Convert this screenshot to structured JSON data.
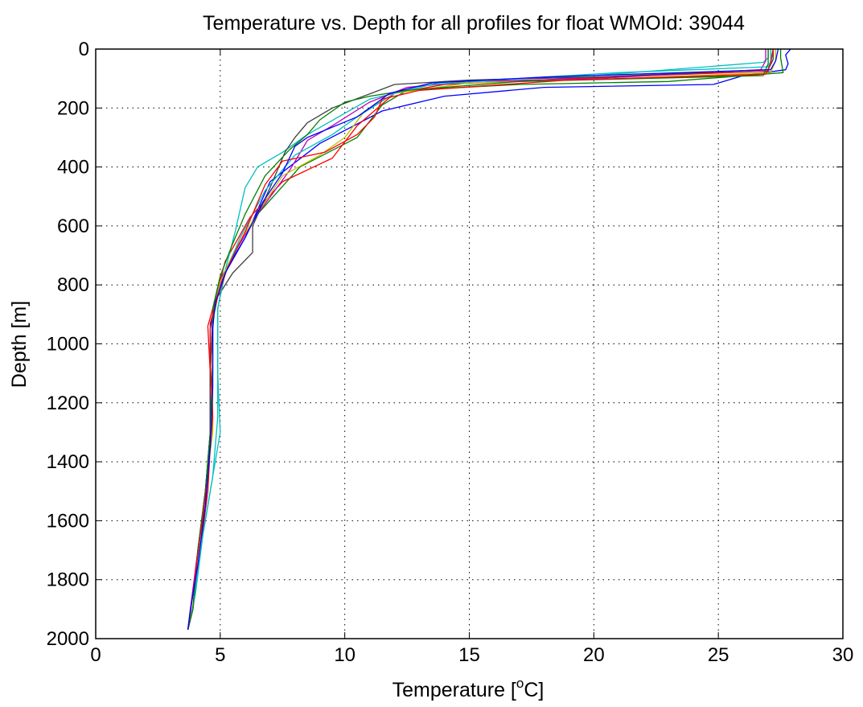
{
  "chart_data": {
    "type": "line",
    "title": "Temperature vs. Depth for all profiles for float WMOId: 39044",
    "xlabel_main": "Temperature [",
    "xlabel_sup": "o",
    "xlabel_unit": "C]",
    "ylabel": "Depth [m]",
    "xlim": [
      0,
      30
    ],
    "ylim": [
      0,
      2000
    ],
    "y_reversed": true,
    "grid": true,
    "grid_style": "dotted",
    "legend": "none",
    "x_ticks": [
      0,
      5,
      10,
      15,
      20,
      25,
      30
    ],
    "y_ticks": [
      0,
      200,
      400,
      600,
      800,
      1000,
      1200,
      1400,
      1600,
      1800,
      2000
    ],
    "series": [
      {
        "color": "#0000ff",
        "points": [
          [
            27.9,
            0
          ],
          [
            27.7,
            20
          ],
          [
            27.8,
            50
          ],
          [
            27.7,
            70
          ],
          [
            26.0,
            90
          ],
          [
            24.8,
            120
          ],
          [
            18.0,
            130
          ],
          [
            14.0,
            160
          ],
          [
            11.5,
            210
          ],
          [
            9.0,
            320
          ],
          [
            7.0,
            450
          ],
          [
            6.0,
            640
          ],
          [
            5.0,
            780
          ],
          [
            4.8,
            850
          ],
          [
            4.6,
            950
          ],
          [
            4.6,
            1200
          ],
          [
            4.6,
            1350
          ],
          [
            4.4,
            1500
          ],
          [
            4.1,
            1700
          ],
          [
            3.9,
            1850
          ],
          [
            3.7,
            1970
          ]
        ]
      },
      {
        "color": "#008000",
        "points": [
          [
            27.5,
            0
          ],
          [
            27.5,
            30
          ],
          [
            27.6,
            80
          ],
          [
            23.0,
            110
          ],
          [
            17.0,
            120
          ],
          [
            12.5,
            140
          ],
          [
            11.5,
            190
          ],
          [
            10.5,
            300
          ],
          [
            8.2,
            400
          ],
          [
            6.5,
            560
          ],
          [
            5.5,
            700
          ],
          [
            5.0,
            790
          ],
          [
            4.7,
            900
          ],
          [
            4.7,
            1100
          ],
          [
            4.6,
            1300
          ],
          [
            4.4,
            1500
          ],
          [
            4.2,
            1700
          ],
          [
            3.9,
            1900
          ],
          [
            3.7,
            1970
          ]
        ]
      },
      {
        "color": "#ff0000",
        "points": [
          [
            27.2,
            0
          ],
          [
            27.1,
            40
          ],
          [
            27.0,
            75
          ],
          [
            19.0,
            100
          ],
          [
            14.0,
            120
          ],
          [
            12.0,
            150
          ],
          [
            10.5,
            260
          ],
          [
            9.5,
            370
          ],
          [
            7.5,
            450
          ],
          [
            6.2,
            570
          ],
          [
            5.2,
            720
          ],
          [
            4.8,
            850
          ],
          [
            4.5,
            940
          ],
          [
            4.6,
            1100
          ],
          [
            4.6,
            1350
          ],
          [
            4.5,
            1500
          ],
          [
            4.2,
            1700
          ],
          [
            3.9,
            1900
          ],
          [
            3.7,
            1970
          ]
        ]
      },
      {
        "color": "#00bfbf",
        "points": [
          [
            27.0,
            0
          ],
          [
            27.0,
            30
          ],
          [
            26.8,
            45
          ],
          [
            20.0,
            90
          ],
          [
            14.0,
            110
          ],
          [
            11.0,
            170
          ],
          [
            8.5,
            290
          ],
          [
            7.5,
            350
          ],
          [
            6.5,
            400
          ],
          [
            6.0,
            470
          ],
          [
            5.6,
            620
          ],
          [
            5.2,
            750
          ],
          [
            4.9,
            880
          ],
          [
            4.9,
            1100
          ],
          [
            5.0,
            1300
          ],
          [
            4.6,
            1500
          ],
          [
            4.2,
            1700
          ],
          [
            3.9,
            1900
          ],
          [
            3.7,
            1970
          ]
        ]
      },
      {
        "color": "#bf00bf",
        "points": [
          [
            26.9,
            0
          ],
          [
            26.9,
            40
          ],
          [
            26.7,
            70
          ],
          [
            20.0,
            100
          ],
          [
            15.0,
            110
          ],
          [
            12.5,
            130
          ],
          [
            11.0,
            180
          ],
          [
            9.5,
            260
          ],
          [
            8.5,
            310
          ],
          [
            7.8,
            410
          ],
          [
            6.5,
            560
          ],
          [
            5.5,
            700
          ],
          [
            5.0,
            800
          ],
          [
            4.7,
            900
          ],
          [
            4.6,
            1100
          ],
          [
            4.6,
            1300
          ],
          [
            4.4,
            1500
          ],
          [
            4.1,
            1700
          ],
          [
            3.8,
            1900
          ],
          [
            3.7,
            1970
          ]
        ]
      },
      {
        "color": "#bfbf00",
        "points": [
          [
            27.3,
            0
          ],
          [
            27.3,
            40
          ],
          [
            27.1,
            80
          ],
          [
            21.0,
            100
          ],
          [
            15.0,
            115
          ],
          [
            12.0,
            150
          ],
          [
            10.8,
            210
          ],
          [
            10.0,
            300
          ],
          [
            9.0,
            360
          ],
          [
            7.5,
            430
          ],
          [
            6.4,
            570
          ],
          [
            5.6,
            680
          ],
          [
            5.0,
            790
          ],
          [
            4.7,
            900
          ],
          [
            4.7,
            1100
          ],
          [
            4.7,
            1300
          ],
          [
            4.4,
            1500
          ],
          [
            4.1,
            1700
          ],
          [
            3.9,
            1900
          ],
          [
            3.7,
            1970
          ]
        ]
      },
      {
        "color": "#404040",
        "points": [
          [
            27.2,
            0
          ],
          [
            27.2,
            35
          ],
          [
            27.0,
            70
          ],
          [
            20.0,
            95
          ],
          [
            15.0,
            105
          ],
          [
            12.0,
            120
          ],
          [
            9.5,
            200
          ],
          [
            8.5,
            250
          ],
          [
            8.0,
            300
          ],
          [
            7.6,
            350
          ],
          [
            7.0,
            470
          ],
          [
            6.3,
            600
          ],
          [
            6.3,
            690
          ],
          [
            5.5,
            760
          ],
          [
            4.9,
            840
          ],
          [
            4.7,
            920
          ],
          [
            4.6,
            1100
          ],
          [
            4.6,
            1300
          ],
          [
            4.4,
            1500
          ],
          [
            4.1,
            1700
          ],
          [
            3.9,
            1900
          ],
          [
            3.7,
            1970
          ]
        ]
      },
      {
        "color": "#00bfbf",
        "points": [
          [
            27.1,
            0
          ],
          [
            27.1,
            40
          ],
          [
            27.0,
            60
          ],
          [
            21.0,
            80
          ],
          [
            17.0,
            100
          ],
          [
            13.5,
            120
          ],
          [
            12.0,
            150
          ],
          [
            10.5,
            230
          ],
          [
            9.5,
            290
          ],
          [
            8.0,
            360
          ],
          [
            6.8,
            480
          ],
          [
            5.8,
            640
          ],
          [
            5.2,
            760
          ],
          [
            4.9,
            880
          ],
          [
            4.9,
            1050
          ],
          [
            4.9,
            1250
          ],
          [
            4.7,
            1450
          ],
          [
            4.3,
            1650
          ],
          [
            4.0,
            1850
          ],
          [
            3.7,
            1970
          ]
        ]
      },
      {
        "color": "#008000",
        "points": [
          [
            27.0,
            0
          ],
          [
            27.0,
            50
          ],
          [
            26.8,
            90
          ],
          [
            17.0,
            110
          ],
          [
            12.5,
            140
          ],
          [
            11.0,
            160
          ],
          [
            10.0,
            180
          ],
          [
            9.0,
            240
          ],
          [
            8.5,
            290
          ],
          [
            7.8,
            340
          ],
          [
            6.8,
            430
          ],
          [
            6.0,
            560
          ],
          [
            5.5,
            660
          ],
          [
            5.0,
            770
          ],
          [
            4.7,
            880
          ],
          [
            4.7,
            1050
          ],
          [
            4.6,
            1300
          ],
          [
            4.4,
            1500
          ],
          [
            4.1,
            1700
          ],
          [
            3.9,
            1900
          ],
          [
            3.7,
            1970
          ]
        ]
      },
      {
        "color": "#ff0000",
        "points": [
          [
            27.2,
            0
          ],
          [
            27.1,
            50
          ],
          [
            26.9,
            85
          ],
          [
            19.0,
            105
          ],
          [
            13.0,
            140
          ],
          [
            11.5,
            170
          ],
          [
            11.2,
            230
          ],
          [
            10.5,
            290
          ],
          [
            9.2,
            350
          ],
          [
            7.5,
            380
          ],
          [
            6.8,
            460
          ],
          [
            6.0,
            620
          ],
          [
            5.3,
            740
          ],
          [
            4.9,
            840
          ],
          [
            4.6,
            930
          ],
          [
            4.6,
            1050
          ],
          [
            4.7,
            1250
          ],
          [
            4.5,
            1450
          ],
          [
            4.2,
            1650
          ],
          [
            3.9,
            1850
          ],
          [
            3.7,
            1970
          ]
        ]
      },
      {
        "color": "#0000ff",
        "points": [
          [
            27.4,
            0
          ],
          [
            27.3,
            40
          ],
          [
            27.1,
            70
          ],
          [
            18.0,
            95
          ],
          [
            13.5,
            115
          ],
          [
            11.8,
            150
          ],
          [
            11.0,
            200
          ],
          [
            10.5,
            230
          ],
          [
            8.5,
            300
          ],
          [
            8.0,
            330
          ],
          [
            7.5,
            420
          ],
          [
            6.7,
            520
          ],
          [
            6.0,
            640
          ],
          [
            5.2,
            760
          ],
          [
            4.8,
            860
          ],
          [
            4.7,
            950
          ],
          [
            4.7,
            1150
          ],
          [
            4.6,
            1350
          ],
          [
            4.4,
            1550
          ],
          [
            4.1,
            1750
          ],
          [
            3.8,
            1900
          ],
          [
            3.7,
            1970
          ]
        ]
      }
    ]
  }
}
